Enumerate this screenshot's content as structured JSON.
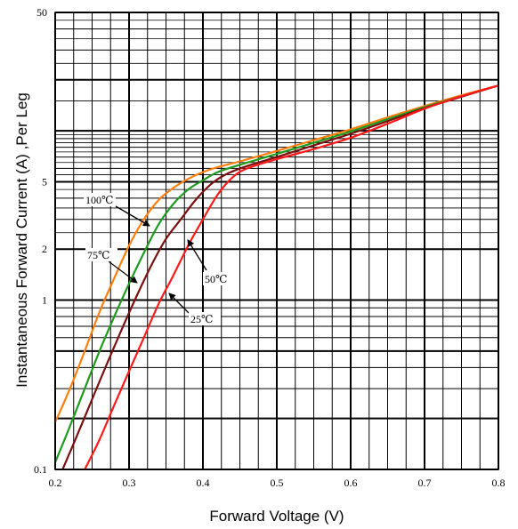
{
  "chart_data": {
    "type": "line",
    "title": "",
    "xlabel": "Forward Voltage (V)",
    "ylabel": "Instantaneous Forward Current (A) ,Per Leg",
    "xlim": [
      0.2,
      0.8
    ],
    "ylim": [
      0.1,
      50
    ],
    "yscale": "log",
    "grid": true,
    "x_ticks": [
      {
        "value": 0.2,
        "label": "0.2"
      },
      {
        "value": 0.3,
        "label": "0.3"
      },
      {
        "value": 0.4,
        "label": "0.4"
      },
      {
        "value": 0.5,
        "label": "0.5"
      },
      {
        "value": 0.6,
        "label": "0.6"
      },
      {
        "value": 0.7,
        "label": "0.7"
      },
      {
        "value": 0.8,
        "label": "0.8"
      }
    ],
    "y_ticks": [
      {
        "value": 0.1,
        "label": "0.1"
      },
      {
        "value": 1,
        "label": "1"
      },
      {
        "value": 2,
        "label": "2"
      },
      {
        "value": 5,
        "label": "5"
      },
      {
        "value": 50,
        "label": "50"
      }
    ],
    "series": [
      {
        "name": "100℃",
        "color": "#ff7f0e",
        "x": [
          0.2,
          0.22,
          0.24,
          0.26,
          0.28,
          0.3,
          0.32,
          0.34,
          0.36,
          0.38,
          0.4,
          0.42,
          0.45,
          0.5,
          0.55,
          0.6,
          0.65,
          0.7,
          0.75,
          0.8
        ],
        "y": [
          0.19,
          0.3,
          0.5,
          0.85,
          1.35,
          2.1,
          3.0,
          3.9,
          4.6,
          5.2,
          5.7,
          6.1,
          6.6,
          7.6,
          8.8,
          10.2,
          12.0,
          14.0,
          16.2,
          18.5
        ]
      },
      {
        "name": "75℃",
        "color": "#1e9a1e",
        "x": [
          0.2,
          0.22,
          0.24,
          0.26,
          0.28,
          0.3,
          0.32,
          0.34,
          0.36,
          0.38,
          0.4,
          0.42,
          0.45,
          0.5,
          0.55,
          0.6,
          0.65,
          0.7,
          0.75,
          0.8
        ],
        "y": [
          0.11,
          0.18,
          0.3,
          0.5,
          0.8,
          1.25,
          1.9,
          2.8,
          3.7,
          4.5,
          5.1,
          5.7,
          6.3,
          7.3,
          8.5,
          9.9,
          11.7,
          13.8,
          16.0,
          18.5
        ]
      },
      {
        "name": "50℃",
        "color": "#7b1010",
        "x": [
          0.21,
          0.23,
          0.25,
          0.27,
          0.29,
          0.31,
          0.33,
          0.35,
          0.37,
          0.39,
          0.41,
          0.43,
          0.46,
          0.5,
          0.55,
          0.6,
          0.65,
          0.7,
          0.75,
          0.8
        ],
        "y": [
          0.1,
          0.16,
          0.26,
          0.42,
          0.67,
          1.05,
          1.6,
          2.3,
          3.0,
          3.9,
          4.8,
          5.5,
          6.2,
          7.0,
          8.2,
          9.6,
          11.4,
          13.6,
          15.9,
          18.5
        ]
      },
      {
        "name": "25℃",
        "color": "#ff1a1a",
        "x": [
          0.24,
          0.26,
          0.28,
          0.3,
          0.32,
          0.34,
          0.36,
          0.38,
          0.4,
          0.42,
          0.44,
          0.46,
          0.5,
          0.55,
          0.6,
          0.65,
          0.7,
          0.75,
          0.8
        ],
        "y": [
          0.1,
          0.15,
          0.24,
          0.38,
          0.6,
          0.95,
          1.4,
          2.1,
          3.0,
          4.2,
          5.3,
          6.0,
          6.8,
          7.8,
          9.1,
          11.0,
          13.5,
          16.0,
          18.5
        ]
      }
    ],
    "annotations": [
      {
        "text": "100℃",
        "series": "100℃"
      },
      {
        "text": "75℃",
        "series": "75℃"
      },
      {
        "text": "50℃",
        "series": "50℃"
      },
      {
        "text": "25℃",
        "series": "25℃"
      }
    ]
  }
}
